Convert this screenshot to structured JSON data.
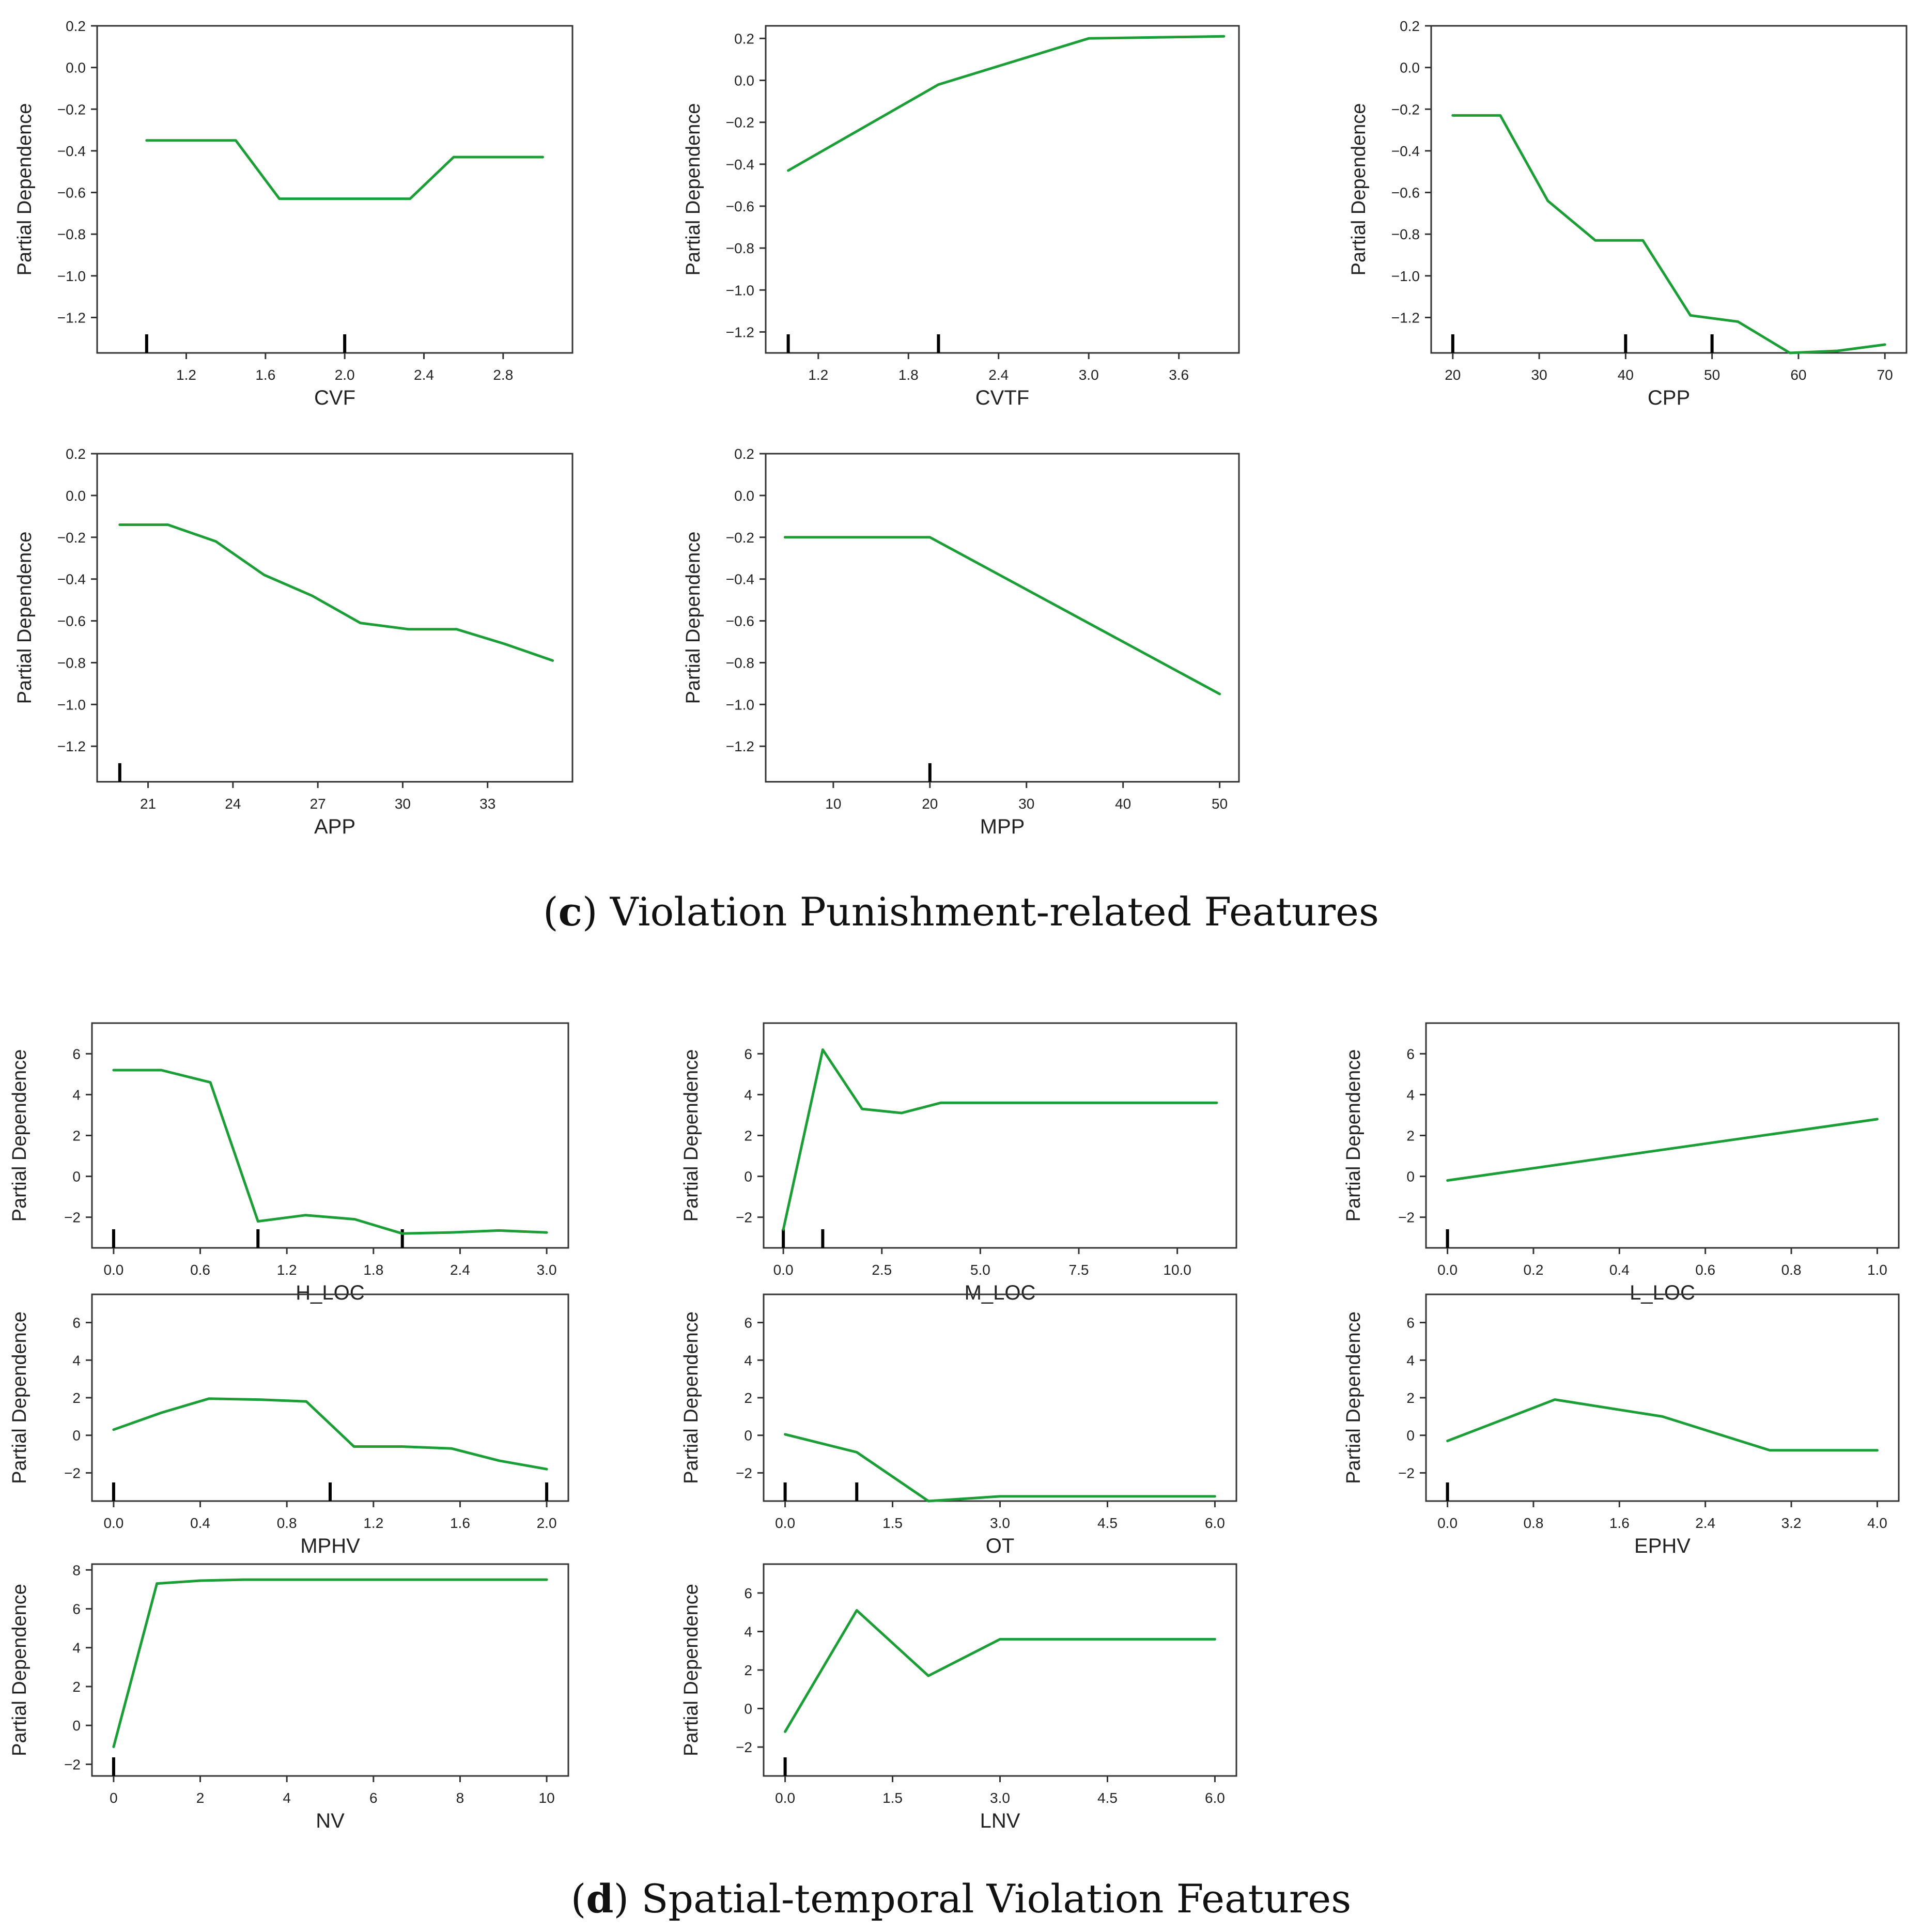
{
  "colors": {
    "line": "#1a9e35",
    "axis": "#333333",
    "text": "#222222",
    "rug": "#000000"
  },
  "captions": {
    "c": {
      "letter": "c",
      "text": "Violation Punishment-related Features"
    },
    "d": {
      "letter": "d",
      "text": "Spatial-temporal Violation Features"
    }
  },
  "chart_data": [
    {
      "id": "cvf",
      "type": "line",
      "section": "c",
      "xlabel": "CVF",
      "ylabel": "Partial Dependence",
      "xlim": [
        0.75,
        3.15
      ],
      "ylim": [
        -1.37,
        0.2
      ],
      "xticks": [
        1.2,
        1.6,
        2.0,
        2.4,
        2.8
      ],
      "xticklabels": [
        "1.2",
        "1.6",
        "2.0",
        "2.4",
        "2.8"
      ],
      "yticks": [
        0.2,
        0.0,
        -0.2,
        -0.4,
        -0.6,
        -0.8,
        -1.0,
        -1.2
      ],
      "yticklabels": [
        "0.2",
        "0.0",
        "−0.2",
        "−0.4",
        "−0.6",
        "−0.8",
        "−1.0",
        "−1.2"
      ],
      "x": [
        1.0,
        1.45,
        1.67,
        2.33,
        2.55,
        3.0
      ],
      "y": [
        -0.35,
        -0.35,
        -0.63,
        -0.63,
        -0.43,
        -0.43
      ],
      "rug": [
        1.0,
        2.0
      ]
    },
    {
      "id": "cvtf",
      "type": "line",
      "section": "c",
      "xlabel": "CVTF",
      "ylabel": "Partial Dependence",
      "xlim": [
        0.85,
        4.0
      ],
      "ylim": [
        -1.3,
        0.26
      ],
      "xticks": [
        1.2,
        1.8,
        2.4,
        3.0,
        3.6
      ],
      "xticklabels": [
        "1.2",
        "1.8",
        "2.4",
        "3.0",
        "3.6"
      ],
      "yticks": [
        0.2,
        0.0,
        -0.2,
        -0.4,
        -0.6,
        -0.8,
        -1.0,
        -1.2
      ],
      "yticklabels": [
        "0.2",
        "0.0",
        "−0.2",
        "−0.4",
        "−0.6",
        "−0.8",
        "−1.0",
        "−1.2"
      ],
      "x": [
        1.0,
        2.0,
        3.0,
        3.9
      ],
      "y": [
        -0.43,
        -0.02,
        0.2,
        0.21
      ],
      "rug": [
        1.0,
        2.0
      ]
    },
    {
      "id": "cpp",
      "type": "line",
      "section": "c",
      "xlabel": "CPP",
      "ylabel": "Partial Dependence",
      "xlim": [
        17.5,
        72.5
      ],
      "ylim": [
        -1.37,
        0.2
      ],
      "xticks": [
        20,
        30,
        40,
        50,
        60,
        70
      ],
      "xticklabels": [
        "20",
        "30",
        "40",
        "50",
        "60",
        "70"
      ],
      "yticks": [
        0.2,
        0.0,
        -0.2,
        -0.4,
        -0.6,
        -0.8,
        -1.0,
        -1.2
      ],
      "yticklabels": [
        "0.2",
        "0.0",
        "−0.2",
        "−0.4",
        "−0.6",
        "−0.8",
        "−1.0",
        "−1.2"
      ],
      "x": [
        20,
        25.5,
        31,
        36.5,
        42,
        47.5,
        53,
        59,
        64.5,
        70
      ],
      "y": [
        -0.23,
        -0.23,
        -0.64,
        -0.83,
        -0.83,
        -1.19,
        -1.22,
        -1.37,
        -1.36,
        -1.33
      ],
      "rug": [
        20,
        40,
        50
      ]
    },
    {
      "id": "app",
      "type": "line",
      "section": "c",
      "xlabel": "APP",
      "ylabel": "Partial Dependence",
      "xlim": [
        19.2,
        36.0
      ],
      "ylim": [
        -1.37,
        0.2
      ],
      "xticks": [
        21,
        24,
        27,
        30,
        33
      ],
      "xticklabels": [
        "21",
        "24",
        "27",
        "30",
        "33"
      ],
      "yticks": [
        0.2,
        0.0,
        -0.2,
        -0.4,
        -0.6,
        -0.8,
        -1.0,
        -1.2
      ],
      "yticklabels": [
        "0.2",
        "0.0",
        "−0.2",
        "−0.4",
        "−0.6",
        "−0.8",
        "−1.0",
        "−1.2"
      ],
      "x": [
        20,
        21.7,
        23.4,
        25.1,
        26.8,
        28.5,
        30.2,
        31.9,
        33.6,
        35.3
      ],
      "y": [
        -0.14,
        -0.14,
        -0.22,
        -0.38,
        -0.48,
        -0.61,
        -0.64,
        -0.64,
        -0.71,
        -0.79
      ],
      "rug": [
        20
      ]
    },
    {
      "id": "mpp",
      "type": "line",
      "section": "c",
      "xlabel": "MPP",
      "ylabel": "Partial Dependence",
      "xlim": [
        3.0,
        52.0
      ],
      "ylim": [
        -1.37,
        0.2
      ],
      "xticks": [
        10,
        20,
        30,
        40,
        50
      ],
      "xticklabels": [
        "10",
        "20",
        "30",
        "40",
        "50"
      ],
      "yticks": [
        0.2,
        0.0,
        -0.2,
        -0.4,
        -0.6,
        -0.8,
        -1.0,
        -1.2
      ],
      "yticklabels": [
        "0.2",
        "0.0",
        "−0.2",
        "−0.4",
        "−0.6",
        "−0.8",
        "−1.0",
        "−1.2"
      ],
      "x": [
        5,
        20,
        50
      ],
      "y": [
        -0.2,
        -0.2,
        -0.95
      ],
      "rug": [
        20
      ]
    },
    {
      "id": "h_loc",
      "type": "line",
      "section": "d",
      "xlabel": "H_LOC",
      "ylabel": "Partial Dependence",
      "xlim": [
        -0.15,
        3.15
      ],
      "ylim": [
        -3.5,
        7.5
      ],
      "xticks": [
        0.0,
        0.6,
        1.2,
        1.8,
        2.4,
        3.0
      ],
      "xticklabels": [
        "0.0",
        "0.6",
        "1.2",
        "1.8",
        "2.4",
        "3.0"
      ],
      "yticks": [
        6,
        4,
        2,
        0,
        -2
      ],
      "yticklabels": [
        "6",
        "4",
        "2",
        "0",
        "−2"
      ],
      "x": [
        0.0,
        0.33,
        0.67,
        1.0,
        1.33,
        1.67,
        2.0,
        2.33,
        2.67,
        3.0
      ],
      "y": [
        5.2,
        5.2,
        4.6,
        -2.2,
        -1.9,
        -2.1,
        -2.8,
        -2.75,
        -2.65,
        -2.75
      ],
      "rug": [
        0.0,
        1.0,
        2.0
      ]
    },
    {
      "id": "m_loc",
      "type": "line",
      "section": "d",
      "xlabel": "M_LOC",
      "ylabel": "Partial Dependence",
      "xlim": [
        -0.5,
        11.5
      ],
      "ylim": [
        -3.5,
        7.5
      ],
      "xticks": [
        0.0,
        2.5,
        5.0,
        7.5,
        10.0
      ],
      "xticklabels": [
        "0.0",
        "2.5",
        "5.0",
        "7.5",
        "10.0"
      ],
      "yticks": [
        6,
        4,
        2,
        0,
        -2
      ],
      "yticklabels": [
        "6",
        "4",
        "2",
        "0",
        "−2"
      ],
      "x": [
        0,
        1,
        2,
        3,
        4,
        5,
        6,
        7,
        8,
        9,
        10,
        11
      ],
      "y": [
        -2.6,
        6.2,
        3.3,
        3.1,
        3.6,
        3.6,
        3.6,
        3.6,
        3.6,
        3.6,
        3.6,
        3.6
      ],
      "rug": [
        0,
        1
      ]
    },
    {
      "id": "l_loc",
      "type": "line",
      "section": "d",
      "xlabel": "L_LOC",
      "ylabel": "Partial Dependence",
      "xlim": [
        -0.05,
        1.05
      ],
      "ylim": [
        -3.5,
        7.5
      ],
      "xticks": [
        0.0,
        0.2,
        0.4,
        0.6,
        0.8,
        1.0
      ],
      "xticklabels": [
        "0.0",
        "0.2",
        "0.4",
        "0.6",
        "0.8",
        "1.0"
      ],
      "yticks": [
        6,
        4,
        2,
        0,
        -2
      ],
      "yticklabels": [
        "6",
        "4",
        "2",
        "0",
        "−2"
      ],
      "x": [
        0.0,
        1.0
      ],
      "y": [
        -0.2,
        2.8
      ],
      "rug": [
        0.0
      ]
    },
    {
      "id": "mphv",
      "type": "line",
      "section": "d",
      "xlabel": "MPHV",
      "ylabel": "Partial Dependence",
      "xlim": [
        -0.1,
        2.1
      ],
      "ylim": [
        -3.5,
        7.5
      ],
      "xticks": [
        0.0,
        0.4,
        0.8,
        1.2,
        1.6,
        2.0
      ],
      "xticklabels": [
        "0.0",
        "0.4",
        "0.8",
        "1.2",
        "1.6",
        "2.0"
      ],
      "yticks": [
        6,
        4,
        2,
        0,
        -2
      ],
      "yticklabels": [
        "6",
        "4",
        "2",
        "0",
        "−2"
      ],
      "x": [
        0.0,
        0.22,
        0.44,
        0.67,
        0.89,
        1.11,
        1.33,
        1.56,
        1.78,
        2.0
      ],
      "y": [
        0.3,
        1.2,
        1.95,
        1.9,
        1.8,
        -0.6,
        -0.6,
        -0.7,
        -1.35,
        -1.8
      ],
      "rug": [
        0.0,
        1.0,
        2.0
      ]
    },
    {
      "id": "ot",
      "type": "line",
      "section": "d",
      "xlabel": "OT",
      "ylabel": "Partial Dependence",
      "xlim": [
        -0.3,
        6.3
      ],
      "ylim": [
        -3.5,
        7.5
      ],
      "xticks": [
        0.0,
        1.5,
        3.0,
        4.5,
        6.0
      ],
      "xticklabels": [
        "0.0",
        "1.5",
        "3.0",
        "4.5",
        "6.0"
      ],
      "yticks": [
        6,
        4,
        2,
        0,
        -2
      ],
      "yticklabels": [
        "6",
        "4",
        "2",
        "0",
        "−2"
      ],
      "x": [
        0,
        1,
        2,
        3,
        4,
        5,
        6
      ],
      "y": [
        0.05,
        -0.9,
        -3.5,
        -3.25,
        -3.25,
        -3.25,
        -3.25
      ],
      "rug": [
        0,
        1
      ]
    },
    {
      "id": "ephv",
      "type": "line",
      "section": "d",
      "xlabel": "EPHV",
      "ylabel": "Partial Dependence",
      "xlim": [
        -0.2,
        4.2
      ],
      "ylim": [
        -3.5,
        7.5
      ],
      "xticks": [
        0.0,
        0.8,
        1.6,
        2.4,
        3.2,
        4.0
      ],
      "xticklabels": [
        "0.0",
        "0.8",
        "1.6",
        "2.4",
        "3.2",
        "4.0"
      ],
      "yticks": [
        6,
        4,
        2,
        0,
        -2
      ],
      "yticklabels": [
        "6",
        "4",
        "2",
        "0",
        "−2"
      ],
      "x": [
        0,
        1,
        2,
        3,
        4
      ],
      "y": [
        -0.3,
        1.9,
        1.0,
        -0.8,
        -0.8
      ],
      "rug": [
        0
      ]
    },
    {
      "id": "nv",
      "type": "line",
      "section": "d",
      "xlabel": "NV",
      "ylabel": "Partial Dependence",
      "xlim": [
        -0.5,
        10.5
      ],
      "ylim": [
        -2.6,
        8.3
      ],
      "xticks": [
        0,
        2,
        4,
        6,
        8,
        10
      ],
      "xticklabels": [
        "0",
        "2",
        "4",
        "6",
        "8",
        "10"
      ],
      "yticks": [
        8,
        6,
        4,
        2,
        0,
        -2
      ],
      "yticklabels": [
        "8",
        "6",
        "4",
        "2",
        "0",
        "−2"
      ],
      "x": [
        0,
        1,
        2,
        3,
        4,
        5,
        6,
        7,
        8,
        9,
        10
      ],
      "y": [
        -1.1,
        7.3,
        7.45,
        7.5,
        7.5,
        7.5,
        7.5,
        7.5,
        7.5,
        7.5,
        7.5
      ],
      "rug": [
        0
      ]
    },
    {
      "id": "lnv",
      "type": "line",
      "section": "d",
      "xlabel": "LNV",
      "ylabel": "Partial Dependence",
      "xlim": [
        -0.3,
        6.3
      ],
      "ylim": [
        -3.5,
        7.5
      ],
      "xticks": [
        0.0,
        1.5,
        3.0,
        4.5,
        6.0
      ],
      "xticklabels": [
        "0.0",
        "1.5",
        "3.0",
        "4.5",
        "6.0"
      ],
      "yticks": [
        6,
        4,
        2,
        0,
        -2
      ],
      "yticklabels": [
        "6",
        "4",
        "2",
        "0",
        "−2"
      ],
      "x": [
        0,
        1,
        2,
        3,
        4,
        5,
        6
      ],
      "y": [
        -1.2,
        5.1,
        1.7,
        3.6,
        3.6,
        3.6,
        3.6
      ],
      "rug": [
        0
      ]
    }
  ]
}
